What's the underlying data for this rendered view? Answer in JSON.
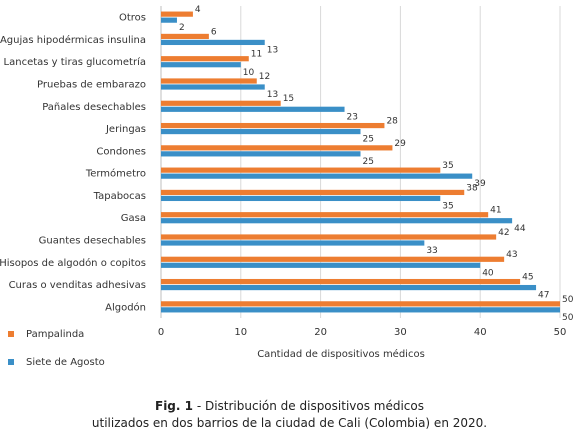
{
  "chart_data": {
    "type": "bar",
    "orientation": "horizontal",
    "categories": [
      "Otros",
      "Agujas hipodérmicas insulina",
      "Lancetas y tiras glucometría",
      "Pruebas de embarazo",
      "Pañales desechables",
      "Jeringas",
      "Condones",
      "Termómetro",
      "Tapabocas",
      "Gasa",
      "Guantes desechables",
      "Hisopos de algodón o copitos",
      "Curas o venditas adhesivas",
      "Algodón"
    ],
    "series": [
      {
        "name": "Pampalinda",
        "color": "#ed7d31",
        "values": [
          4,
          6,
          11,
          12,
          15,
          28,
          29,
          35,
          38,
          41,
          42,
          43,
          45,
          50
        ]
      },
      {
        "name": "Siete de Agosto",
        "color": "#3a8fc7",
        "values": [
          2,
          13,
          10,
          13,
          23,
          25,
          25,
          39,
          35,
          44,
          33,
          40,
          47,
          50
        ]
      }
    ],
    "x_ticks": [
      0,
      10,
      20,
      30,
      40,
      50
    ],
    "xlim": [
      0,
      50
    ],
    "xlabel": "Cantidad de dispositivos médicos",
    "ylabel": "",
    "grid": true,
    "legend_position": "bottom-left"
  },
  "caption": {
    "fig_label": "Fig. 1",
    "line1": " - Distribución de dispositivos médicos",
    "line2": "utilizados en dos barrios de la ciudad de Cali (Colombia) en 2020."
  }
}
